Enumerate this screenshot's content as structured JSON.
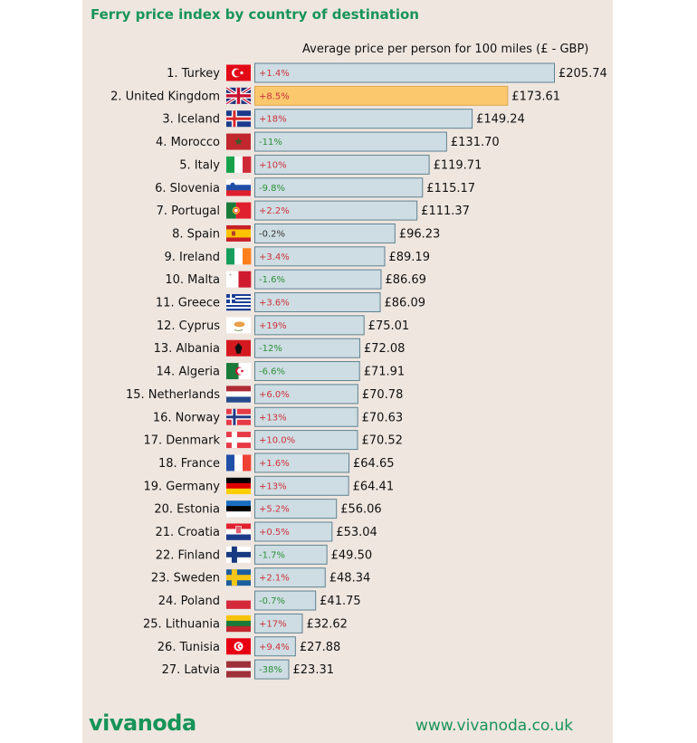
{
  "header": {
    "title": "Ferry price index by country of destination",
    "subtitle": "Average price per person for 100 miles (£ - GBP)"
  },
  "footer": {
    "brand": "vivanoda",
    "url": "www.vivanoda.co.uk"
  },
  "colors": {
    "background": "#efe6e0",
    "bar": "#cddde3",
    "bar_border": "#5f8290",
    "highlight_bar": "#fbc86e",
    "highlight_border": "#d9a850",
    "title": "#179459",
    "increase": "#d0313c",
    "decrease": "#2f8f3a",
    "neutral": "#333333"
  },
  "chart_data": {
    "type": "bar",
    "orientation": "horizontal",
    "title": "Ferry price index by country of destination",
    "xlabel": "Average price per person for 100 miles (£ - GBP)",
    "ylabel": "",
    "xlim": [
      0,
      205.74
    ],
    "grid": false,
    "legend": "none",
    "highlight": "United Kingdom",
    "categories": [
      "1. Turkey",
      "2. United Kingdom",
      "3. Iceland",
      "4. Morocco",
      "5. Italy",
      "6. Slovenia",
      "7. Portugal",
      "8. Spain",
      "9. Ireland",
      "10. Malta",
      "11. Greece",
      "12. Cyprus",
      "13. Albania",
      "14. Algeria",
      "15. Netherlands",
      "16. Norway",
      "17. Denmark",
      "18. France",
      "19. Germany",
      "20. Estonia",
      "21. Croatia",
      "22. Finland",
      "23. Sweden",
      "24. Poland",
      "25. Lithuania",
      "26. Tunisia",
      "27. Latvia"
    ],
    "countries": [
      "turkey",
      "uk",
      "iceland",
      "morocco",
      "italy",
      "slovenia",
      "portugal",
      "spain",
      "ireland",
      "malta",
      "greece",
      "cyprus",
      "albania",
      "algeria",
      "netherlands",
      "norway",
      "denmark",
      "france",
      "germany",
      "estonia",
      "croatia",
      "finland",
      "sweden",
      "poland",
      "lithuania",
      "tunisia",
      "latvia"
    ],
    "values": [
      205.74,
      173.61,
      149.24,
      131.7,
      119.71,
      115.17,
      111.37,
      96.23,
      89.19,
      86.69,
      86.09,
      75.01,
      72.08,
      71.91,
      70.78,
      70.63,
      70.52,
      64.65,
      64.41,
      56.06,
      53.04,
      49.5,
      48.34,
      41.75,
      32.62,
      27.88,
      23.31
    ],
    "value_labels": [
      "£205.74",
      "£173.61",
      "£149.24",
      "£131.70",
      "£119.71",
      "£115.17",
      "£111.37",
      "£96.23",
      "£89.19",
      "£86.69",
      "£86.09",
      "£75.01",
      "£72.08",
      "£71.91",
      "£70.78",
      "£70.63",
      "£70.52",
      "£64.65",
      "£64.41",
      "£56.06",
      "£53.04",
      "£49.50",
      "£48.34",
      "£41.75",
      "£32.62",
      "£27.88",
      "£23.31"
    ],
    "change_labels": [
      "+1.4%",
      "+8.5%",
      "+18%",
      "-11%",
      "+10%",
      "-9.8%",
      "+2.2%",
      "-0.2%",
      "+3.4%",
      "-1.6%",
      "+3.6%",
      "+19%",
      "-12%",
      "-6.6%",
      "+6.0%",
      "+13%",
      "+10.0%",
      "+1.6%",
      "+13%",
      "+5.2%",
      "+0.5%",
      "-1.7%",
      "+2.1%",
      "-0.7%",
      "+17%",
      "+9.4%",
      "-38%"
    ],
    "change_percent": [
      1.4,
      8.5,
      18,
      -11,
      10,
      -9.8,
      2.2,
      -0.2,
      3.4,
      -1.6,
      3.6,
      19,
      -12,
      -6.6,
      6.0,
      13,
      10.0,
      1.6,
      13,
      5.2,
      0.5,
      -1.7,
      2.1,
      -0.7,
      17,
      9.4,
      -38
    ]
  }
}
